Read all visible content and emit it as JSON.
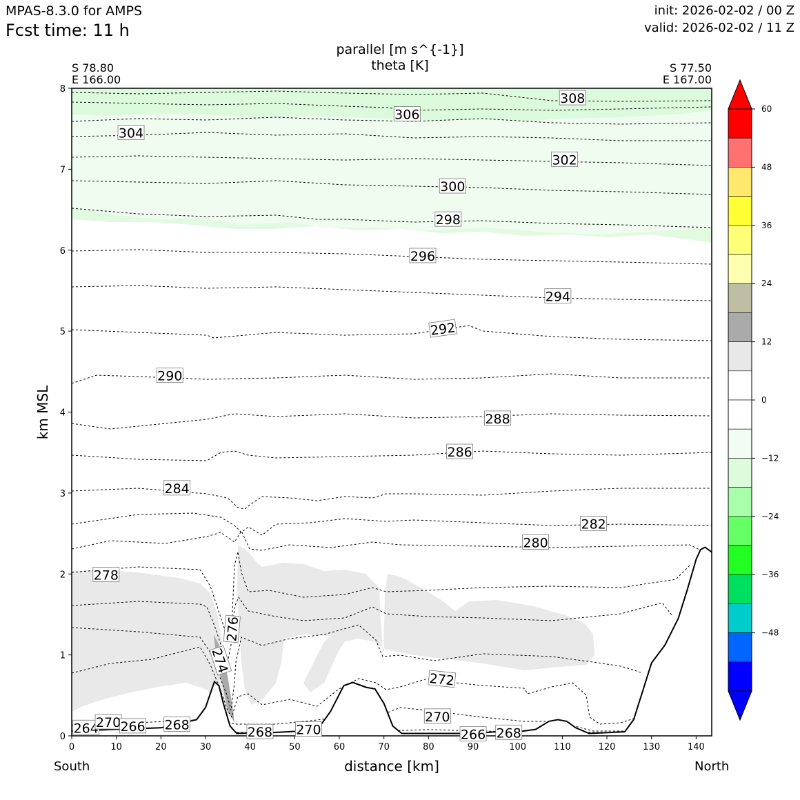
{
  "header": {
    "model": "MPAS-8.3.0 for AMPS",
    "fcst_time": "Fcst time:   11 h",
    "init": "init: 2026-02-02 / 00 Z",
    "valid": "valid: 2026-02-02 / 11 Z"
  },
  "title": {
    "line1": "parallel [m s^{-1}]",
    "line2": "theta [K]"
  },
  "endpoints": {
    "left_lat": "S 78.80",
    "left_lon": "E 166.00",
    "right_lat": "S 77.50",
    "right_lon": "E 167.00",
    "left_dir": "South",
    "right_dir": "North"
  },
  "colors": {
    "terrain": "#000000",
    "contour": "#000000",
    "light_green": "#f0fcf0",
    "pale_green": "#dcfadc",
    "light_gray": "#e9e9e9",
    "dark_gray": "#aaaaaa"
  },
  "chart_data": {
    "type": "cross-section",
    "xlabel": "distance [km]",
    "ylabel": "km MSL",
    "xlim": [
      0,
      143.5
    ],
    "ylim": [
      0,
      8
    ],
    "xticks": [
      0,
      10,
      20,
      30,
      40,
      50,
      60,
      70,
      80,
      90,
      100,
      110,
      120,
      130,
      140
    ],
    "yticks": [
      0,
      1,
      2,
      3,
      4,
      5,
      6,
      7,
      8
    ],
    "terrain_height_km": [
      [
        0,
        0.06
      ],
      [
        10,
        0.08
      ],
      [
        20,
        0.1
      ],
      [
        28,
        0.2
      ],
      [
        30,
        0.35
      ],
      [
        32,
        0.67
      ],
      [
        33,
        0.62
      ],
      [
        34,
        0.4
      ],
      [
        35.5,
        0.12
      ],
      [
        37,
        0.03
      ],
      [
        45,
        0.04
      ],
      [
        55,
        0.07
      ],
      [
        58,
        0.3
      ],
      [
        61,
        0.62
      ],
      [
        63,
        0.66
      ],
      [
        66,
        0.6
      ],
      [
        68,
        0.58
      ],
      [
        70,
        0.4
      ],
      [
        72,
        0.12
      ],
      [
        74,
        0.03
      ],
      [
        90,
        0.03
      ],
      [
        95,
        0.05
      ],
      [
        100,
        0.05
      ],
      [
        104,
        0.08
      ],
      [
        107,
        0.18
      ],
      [
        109,
        0.2
      ],
      [
        111,
        0.18
      ],
      [
        113,
        0.1
      ],
      [
        116,
        0.03
      ],
      [
        124,
        0.05
      ],
      [
        126,
        0.2
      ],
      [
        128,
        0.55
      ],
      [
        130,
        0.9
      ],
      [
        133,
        1.12
      ],
      [
        136,
        1.45
      ],
      [
        138,
        1.8
      ],
      [
        140,
        2.18
      ],
      [
        141,
        2.3
      ],
      [
        142,
        2.33
      ],
      [
        143.5,
        2.27
      ]
    ],
    "theta_contour_labels": [
      {
        "value": "264",
        "x": 3.2,
        "y": 0.1
      },
      {
        "value": "270",
        "x": 8.2,
        "y": 0.17
      },
      {
        "value": "266",
        "x": 13.7,
        "y": 0.12
      },
      {
        "value": "268",
        "x": 23.6,
        "y": 0.14
      },
      {
        "value": "274",
        "x": 33.3,
        "y": 0.93
      },
      {
        "value": "276",
        "x": 36.0,
        "y": 1.32
      },
      {
        "value": "268",
        "x": 42.2,
        "y": 0.05
      },
      {
        "value": "270",
        "x": 53.1,
        "y": 0.08
      },
      {
        "value": "272",
        "x": 83.0,
        "y": 0.7
      },
      {
        "value": "270",
        "x": 82.0,
        "y": 0.24
      },
      {
        "value": "266",
        "x": 90.0,
        "y": 0.02
      },
      {
        "value": "268",
        "x": 98.0,
        "y": 0.04
      },
      {
        "value": "278",
        "x": 7.7,
        "y": 1.99
      },
      {
        "value": "280",
        "x": 104.0,
        "y": 2.39
      },
      {
        "value": "282",
        "x": 117.0,
        "y": 2.62
      },
      {
        "value": "284",
        "x": 23.6,
        "y": 3.06
      },
      {
        "value": "286",
        "x": 87.0,
        "y": 3.51
      },
      {
        "value": "288",
        "x": 95.5,
        "y": 3.92
      },
      {
        "value": "290",
        "x": 22.0,
        "y": 4.45
      },
      {
        "value": "292",
        "x": 83.2,
        "y": 5.03
      },
      {
        "value": "294",
        "x": 109.0,
        "y": 5.43
      },
      {
        "value": "296",
        "x": 78.7,
        "y": 5.93
      },
      {
        "value": "298",
        "x": 84.4,
        "y": 6.38
      },
      {
        "value": "300",
        "x": 85.4,
        "y": 6.79
      },
      {
        "value": "302",
        "x": 110.5,
        "y": 7.12
      },
      {
        "value": "304",
        "x": 13.3,
        "y": 7.45
      },
      {
        "value": "306",
        "x": 75.2,
        "y": 7.68
      },
      {
        "value": "308",
        "x": 112.3,
        "y": 7.88
      }
    ],
    "colorbar": {
      "ticks": [
        "60",
        "48",
        "36",
        "24",
        "12",
        "0",
        "−12",
        "−24",
        "−36",
        "−48"
      ],
      "levels": [
        60,
        54,
        48,
        42,
        36,
        30,
        24,
        18,
        12,
        6,
        0,
        -6,
        -12,
        -18,
        -24,
        -30,
        -36,
        -42,
        -48,
        -54,
        -60
      ],
      "colors": [
        "#ff0000",
        "#ff7070",
        "#ffe86e",
        "#ffff33",
        "#ffff78",
        "#ffffb0",
        "#bebea4",
        "#aaaaaa",
        "#e8e8e8",
        "#ffffff",
        "#ffffff",
        "#f3fcf3",
        "#dcfcdc",
        "#aaffaa",
        "#66ff66",
        "#22ff22",
        "#00e060",
        "#00cccc",
        "#0066ff",
        "#0000ff"
      ],
      "extend_top": "#ff0000",
      "extend_bottom": "#0000ff"
    }
  }
}
